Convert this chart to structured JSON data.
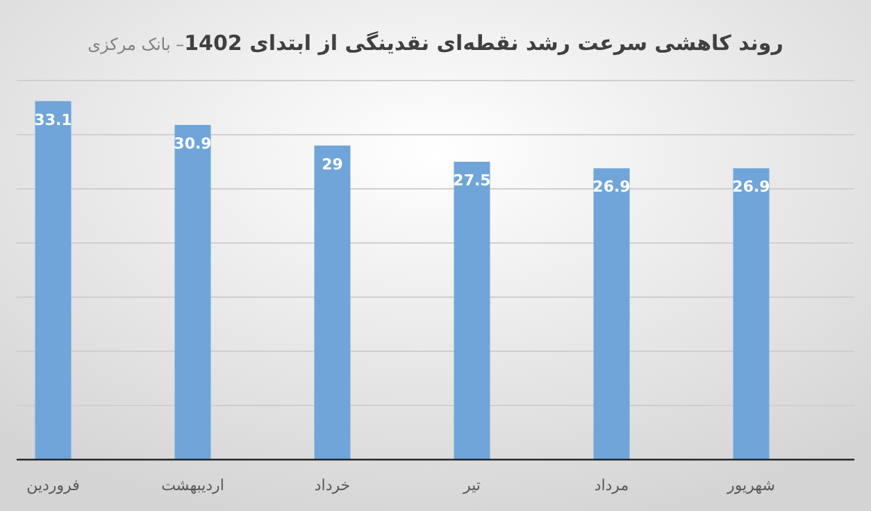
{
  "chart_data": {
    "type": "bar",
    "title": "**روند کاهشی سرعت رشد نقطه‌ای نقدینگی از ابتدای 1402**– بانک مرکزی",
    "categories": [
      "فروردین",
      "اردیبهشت",
      "خرداد",
      "تیر",
      "مرداد",
      "شهریور"
    ],
    "values": [
      33.1,
      30.9,
      29,
      27.5,
      26.9,
      26.9
    ],
    "color": "#6fa5d9",
    "ylim": [
      0,
      35
    ],
    "yticks": [
      0,
      5,
      10,
      15,
      20,
      25,
      30,
      35
    ],
    "tick_labels": "x",
    "grid": "y",
    "data_labels": true
  }
}
